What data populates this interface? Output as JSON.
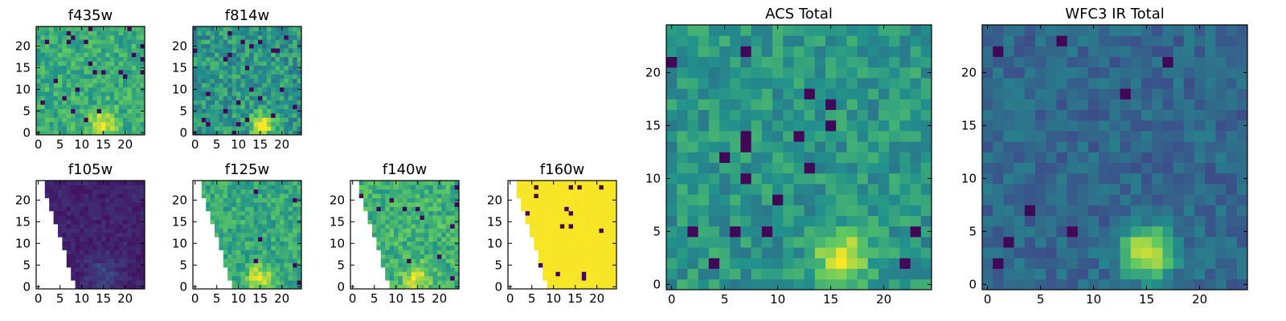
{
  "figure": {
    "background": "#ffffff",
    "colormap": [
      "#440154",
      "#3b528b",
      "#21918c",
      "#5ec962",
      "#fde725"
    ]
  },
  "chart_data": [
    {
      "type": "heatmap",
      "title": "f435w",
      "xlabel": "",
      "ylabel": "",
      "x_ticks": [
        0,
        5,
        10,
        15,
        20
      ],
      "y_ticks": [
        0,
        5,
        10,
        15,
        20
      ],
      "xlim": [
        -0.5,
        24.5
      ],
      "ylim": [
        -0.5,
        24.5
      ],
      "grid_size": 25,
      "mask": "none",
      "base_level": 0.62,
      "noise": 0.14,
      "source": {
        "x": 15,
        "y": 2,
        "sigma": 2.2,
        "amplitude": 0.35
      },
      "seed": 11
    },
    {
      "type": "heatmap",
      "title": "f814w",
      "xlabel": "",
      "ylabel": "",
      "x_ticks": [
        0,
        5,
        10,
        15,
        20
      ],
      "y_ticks": [
        0,
        5,
        10,
        15,
        20
      ],
      "xlim": [
        -0.5,
        24.5
      ],
      "ylim": [
        -0.5,
        24.5
      ],
      "grid_size": 25,
      "mask": "none",
      "base_level": 0.52,
      "noise": 0.17,
      "source": {
        "x": 15.5,
        "y": 2,
        "sigma": 1.8,
        "amplitude": 0.55
      },
      "seed": 23
    },
    {
      "type": "heatmap",
      "title": "f105w",
      "xlabel": "",
      "ylabel": "",
      "x_ticks": [
        0,
        5,
        10,
        15,
        20
      ],
      "y_ticks": [
        0,
        5,
        10,
        15,
        20
      ],
      "xlim": [
        -0.5,
        24.5
      ],
      "ylim": [
        -0.5,
        24.5
      ],
      "grid_size": 25,
      "mask": "diagonal",
      "base_level": 0.1,
      "noise": 0.05,
      "source": {
        "x": 15,
        "y": 3,
        "sigma": 2.5,
        "amplitude": 0.12
      },
      "seed": 37
    },
    {
      "type": "heatmap",
      "title": "f125w",
      "xlabel": "",
      "ylabel": "",
      "x_ticks": [
        0,
        5,
        10,
        15,
        20
      ],
      "y_ticks": [
        0,
        5,
        10,
        15,
        20
      ],
      "xlim": [
        -0.5,
        24.5
      ],
      "ylim": [
        -0.5,
        24.5
      ],
      "grid_size": 25,
      "mask": "diagonal",
      "base_level": 0.6,
      "noise": 0.13,
      "source": {
        "x": 15,
        "y": 2,
        "sigma": 2,
        "amplitude": 0.38
      },
      "seed": 41
    },
    {
      "type": "heatmap",
      "title": "f140w",
      "xlabel": "",
      "ylabel": "",
      "x_ticks": [
        0,
        5,
        10,
        15,
        20
      ],
      "y_ticks": [
        0,
        5,
        10,
        15,
        20
      ],
      "xlim": [
        -0.5,
        24.5
      ],
      "ylim": [
        -0.5,
        24.5
      ],
      "grid_size": 25,
      "mask": "diagonal",
      "base_level": 0.64,
      "noise": 0.14,
      "source": {
        "x": 15,
        "y": 2,
        "sigma": 2,
        "amplitude": 0.33
      },
      "seed": 53
    },
    {
      "type": "heatmap",
      "title": "f160w",
      "xlabel": "",
      "ylabel": "",
      "x_ticks": [
        0,
        5,
        10,
        15,
        20
      ],
      "y_ticks": [
        0,
        5,
        10,
        15,
        20
      ],
      "xlim": [
        -0.5,
        24.5
      ],
      "ylim": [
        -0.5,
        24.5
      ],
      "grid_size": 25,
      "mask": "diagonal",
      "base_level": 0.99,
      "noise": 0.004,
      "source": null,
      "seed": 67
    },
    {
      "type": "heatmap",
      "title": "ACS Total",
      "xlabel": "",
      "ylabel": "",
      "x_ticks": [
        0,
        5,
        10,
        15,
        20
      ],
      "y_ticks": [
        0,
        5,
        10,
        15,
        20
      ],
      "xlim": [
        -0.5,
        24.5
      ],
      "ylim": [
        -0.5,
        24.5
      ],
      "grid_size": 25,
      "mask": "none",
      "base_level": 0.52,
      "noise": 0.13,
      "source": {
        "x": 16,
        "y": 2.5,
        "sigma": 1.5,
        "amplitude": 0.55
      },
      "seed": 79
    },
    {
      "type": "heatmap",
      "title": "WFC3 IR Total",
      "xlabel": "",
      "ylabel": "",
      "x_ticks": [
        0,
        5,
        10,
        15,
        20
      ],
      "y_ticks": [
        0,
        5,
        10,
        15,
        20
      ],
      "xlim": [
        -0.5,
        24.5
      ],
      "ylim": [
        -0.5,
        24.5
      ],
      "grid_size": 25,
      "mask": "none",
      "base_level": 0.33,
      "noise": 0.1,
      "source": {
        "x": 15,
        "y": 3,
        "sigma": 1.7,
        "amplitude": 0.65
      },
      "seed": 83
    }
  ]
}
